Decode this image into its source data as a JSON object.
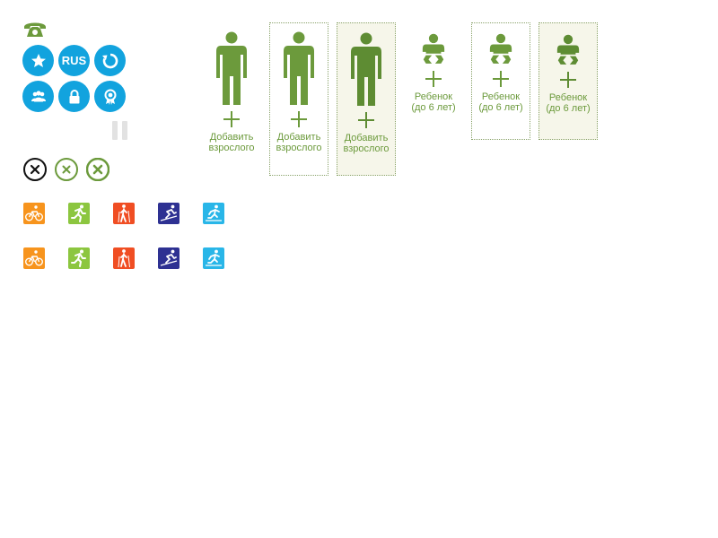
{
  "header": {
    "phone_icon": "phone-icon"
  },
  "round_buttons": [
    {
      "name": "favorite-button",
      "icon": "star-icon",
      "label": ""
    },
    {
      "name": "language-button",
      "icon": "",
      "label": "RUS"
    },
    {
      "name": "refresh-button",
      "icon": "refresh-icon",
      "label": ""
    },
    {
      "name": "group-button",
      "icon": "group-icon",
      "label": ""
    },
    {
      "name": "lock-button",
      "icon": "lock-icon",
      "label": ""
    },
    {
      "name": "award-button",
      "icon": "award-icon",
      "label": ""
    }
  ],
  "colors": {
    "blue": "#12a3de",
    "green": "#6c9a3c",
    "orange": "#f7941d",
    "lime": "#8cc63f",
    "red": "#f04e23",
    "navy": "#2e3192",
    "cyan": "#29b6e8"
  },
  "close_buttons": [
    {
      "style": "black"
    },
    {
      "style": "green"
    },
    {
      "style": "green-bold"
    }
  ],
  "sports_row1": [
    "cycling-icon",
    "running-icon",
    "hiking-icon",
    "skiing-icon",
    "ski-race-icon"
  ],
  "sports_row2": [
    "cycling-icon",
    "running-icon",
    "hiking-icon",
    "skiing-icon",
    "ski-race-icon"
  ],
  "travelers": [
    {
      "type": "adult",
      "line1": "Добавить",
      "line2": "взрослого",
      "state": "normal"
    },
    {
      "type": "adult",
      "line1": "Добавить",
      "line2": "взрослого",
      "state": "hover"
    },
    {
      "type": "adult",
      "line1": "Добавить",
      "line2": "взрослого",
      "state": "active"
    },
    {
      "type": "child",
      "line1": "Ребенок",
      "line2": "(до 6 лет)",
      "state": "normal"
    },
    {
      "type": "child",
      "line1": "Ребенок",
      "line2": "(до 6 лет)",
      "state": "hover"
    },
    {
      "type": "child",
      "line1": "Ребенок",
      "line2": "(до 6 лет)",
      "state": "active"
    }
  ]
}
